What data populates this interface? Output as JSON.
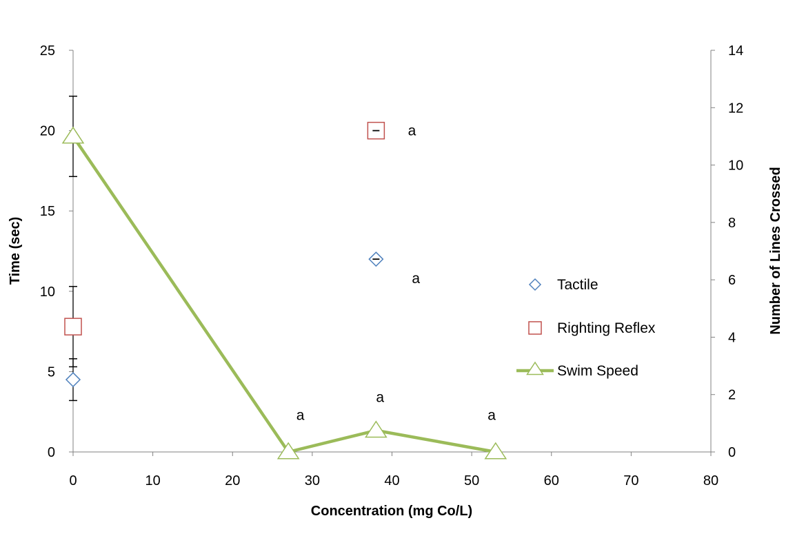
{
  "chart_data": {
    "type": "scatter",
    "xlabel": "Concentration (mg Co/L)",
    "ylabel": "Time (sec)",
    "y2label": "Number of Lines Crossed",
    "xlim": [
      0,
      80
    ],
    "ylim": [
      0,
      25
    ],
    "y2lim": [
      0,
      14
    ],
    "x_ticks": [
      0,
      10,
      20,
      30,
      40,
      50,
      60,
      70,
      80
    ],
    "y_ticks": [
      0,
      5,
      10,
      15,
      20,
      25
    ],
    "y2_ticks": [
      0,
      2,
      4,
      6,
      8,
      10,
      12,
      14
    ],
    "legend_position": "right",
    "grid": false,
    "series": [
      {
        "name": "Tactile",
        "type": "scatter",
        "axis": "left",
        "marker": "diamond",
        "color": "#4f81bd",
        "points": [
          {
            "x": 0,
            "y": 4.5,
            "err": 1.3
          },
          {
            "x": 38,
            "y": 12.0,
            "err": 0
          }
        ]
      },
      {
        "name": "Righting Reflex",
        "type": "scatter",
        "axis": "left",
        "marker": "square",
        "color": "#c0504d",
        "points": [
          {
            "x": 0,
            "y": 7.8,
            "err": 2.5
          },
          {
            "x": 38,
            "y": 20.0,
            "err": 0
          }
        ]
      },
      {
        "name": "Swim Speed",
        "type": "line",
        "axis": "right",
        "marker": "triangle",
        "color": "#9bbb59",
        "points": [
          {
            "x": 0,
            "y": 11.0,
            "err": 1.4
          },
          {
            "x": 27,
            "y": 0.0,
            "err": 0
          },
          {
            "x": 38,
            "y": 0.75,
            "err": 0
          },
          {
            "x": 53,
            "y": 0.0,
            "err": 0
          }
        ]
      }
    ],
    "annotations": [
      {
        "text": "a",
        "x": 42.5,
        "y": 19.7,
        "axis": "left"
      },
      {
        "text": "a",
        "x": 43,
        "y": 10.5,
        "axis": "left"
      },
      {
        "text": "a",
        "x": 28.5,
        "y": 2.0,
        "axis": "left"
      },
      {
        "text": "a",
        "x": 38.5,
        "y": 3.1,
        "axis": "left"
      },
      {
        "text": "a",
        "x": 52.5,
        "y": 2.0,
        "axis": "left"
      }
    ]
  }
}
